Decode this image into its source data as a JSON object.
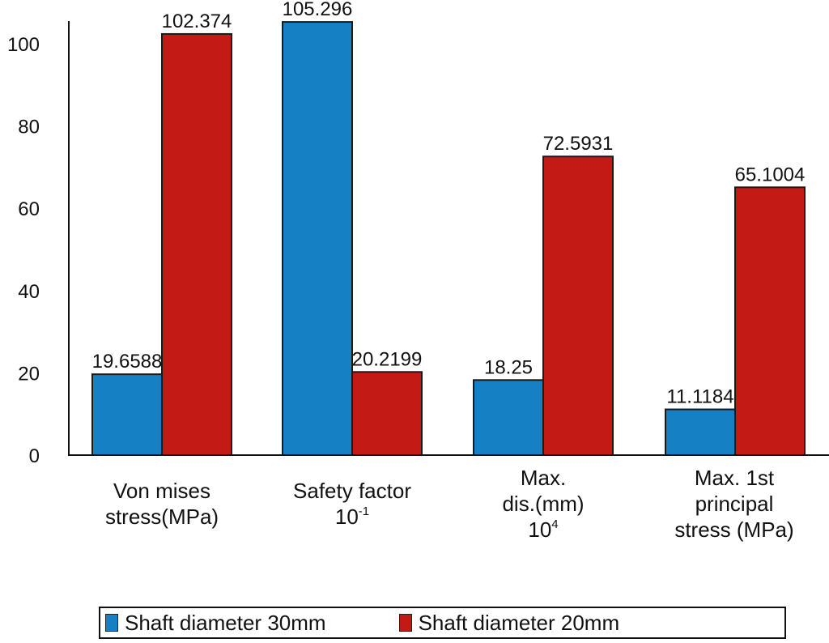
{
  "chart_data": {
    "type": "bar",
    "title": "",
    "xlabel": "",
    "ylabel": "",
    "ylim": [
      0,
      100
    ],
    "yticks": [
      0,
      20,
      40,
      60,
      80,
      100
    ],
    "grid": false,
    "legend_position": "bottom",
    "categories": [
      {
        "lines": [
          "Von mises",
          "stress(MPa)"
        ]
      },
      {
        "lines": [
          "Safety factor"
        ],
        "base": "10",
        "exp": "-1"
      },
      {
        "lines": [
          "Max.",
          "dis.(mm)"
        ],
        "base": "10",
        "exp": "4"
      },
      {
        "lines": [
          "Max. 1st",
          "principal",
          "stress (MPa)"
        ]
      }
    ],
    "series": [
      {
        "name": "Shaft diameter 30mm",
        "color": "#1580c3",
        "values": [
          19.6588,
          105.296,
          18.25,
          11.1184
        ],
        "labels": [
          "19.6588",
          "105.296",
          "18.25",
          "11.1184"
        ]
      },
      {
        "name": "Shaft diameter 20mm",
        "color": "#c41a16",
        "values": [
          102.374,
          20.2199,
          72.5931,
          65.1004
        ],
        "labels": [
          "102.374",
          "20.2199",
          "72.5931",
          "65.1004"
        ]
      }
    ]
  }
}
